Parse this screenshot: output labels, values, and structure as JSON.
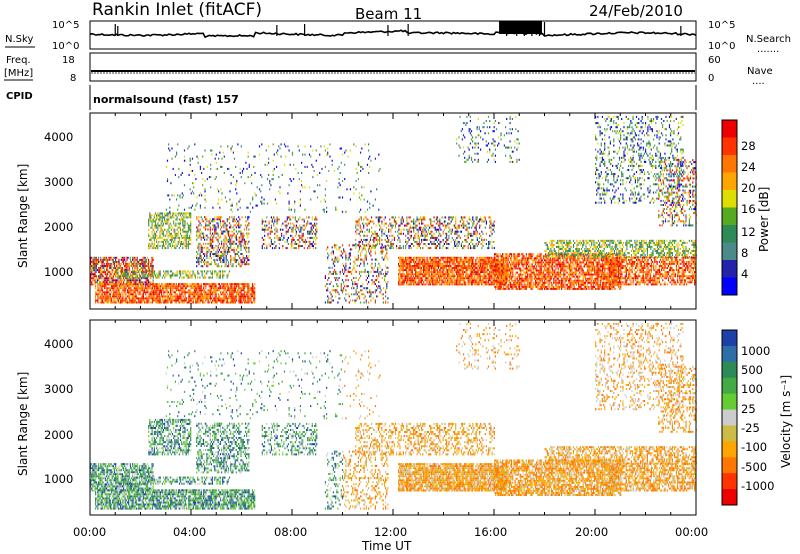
{
  "header": {
    "title": "Rankin Inlet (fitACF)",
    "beam": "Beam 11",
    "date": "24/Feb/2010"
  },
  "noise_panel": {
    "left_label": "N.Sky",
    "right_label": "N.Search",
    "left_ticks": [
      "10^5",
      "10^0"
    ],
    "right_ticks": [
      "10^5",
      "10^0"
    ]
  },
  "freq_panel": {
    "left_label_1": "Freq.",
    "left_label_2": "[MHz]",
    "right_label": "Nave",
    "left_ticks": [
      "18",
      "8"
    ],
    "right_ticks": [
      "60",
      "0"
    ],
    "freq_value_mhz": 10.5
  },
  "cpid_panel": {
    "label": "CPID",
    "value": "normalsound (fast) 157"
  },
  "chart_data": [
    {
      "type": "heatmap",
      "title": "",
      "quantity": "Power",
      "xlabel": "",
      "ylabel": "Slant Range [km]",
      "ylim": [
        180,
        4500
      ],
      "xlim_hours": [
        0,
        24
      ],
      "yticks": [
        "1000",
        "2000",
        "3000",
        "4000"
      ],
      "colorbar_label": "Power [dB]",
      "colorbar_ticks": [
        "28",
        "24",
        "20",
        "16",
        "12",
        "8",
        "4"
      ],
      "colorbar_colors": [
        "#ee0000",
        "#ff3300",
        "#ff7700",
        "#ffa500",
        "#dddd00",
        "#55aa22",
        "#2e8b57",
        "#4a8a88",
        "#2222aa",
        "#0000ff"
      ]
    },
    {
      "type": "heatmap",
      "title": "",
      "quantity": "Velocity",
      "xlabel": "Time UT",
      "ylabel": "Slant Range [km]",
      "ylim": [
        180,
        4500
      ],
      "xlim_hours": [
        0,
        24
      ],
      "yticks": [
        "1000",
        "2000",
        "3000",
        "4000"
      ],
      "xticks": [
        "00:00",
        "04:00",
        "08:00",
        "12:00",
        "16:00",
        "20:00",
        "00:00"
      ],
      "colorbar_label": "Velocity [m s⁻¹]",
      "colorbar_ticks": [
        "1000",
        "500",
        "100",
        "25",
        "-25",
        "-100",
        "-500",
        "-1000"
      ],
      "colorbar_colors": [
        "#1d3fa8",
        "#2e6ea8",
        "#2e8b57",
        "#44aa44",
        "#66cc33",
        "#cccccc",
        "#ccbb44",
        "#ffa500",
        "#ff7700",
        "#ff3300",
        "#ee0000"
      ]
    }
  ]
}
